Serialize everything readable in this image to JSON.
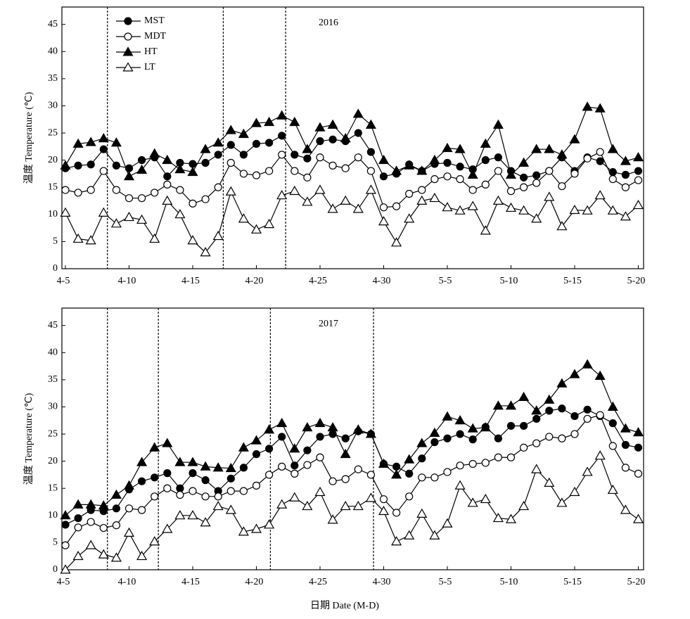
{
  "chart_data": [
    {
      "type": "line",
      "annotation": "2016",
      "ylabel": "温度 Temperature (℃)",
      "categories": [
        "4-5",
        null,
        null,
        null,
        null,
        "4-10",
        null,
        null,
        null,
        null,
        "4-15",
        null,
        null,
        null,
        null,
        "4-20",
        null,
        null,
        null,
        null,
        "4-25",
        null,
        null,
        null,
        null,
        "4-30",
        null,
        null,
        null,
        null,
        "5-5",
        null,
        null,
        null,
        null,
        "5-10",
        null,
        null,
        null,
        null,
        "5-15",
        null,
        null,
        null,
        null,
        "5-20"
      ],
      "ylim": [
        0,
        48.2
      ],
      "yticks": [
        0,
        5,
        10,
        15,
        20,
        25,
        30,
        35,
        40,
        45
      ],
      "legend": "upper left",
      "vlines": [
        3.3,
        12.4,
        17.3
      ],
      "series": [
        {
          "name": "MST",
          "color": "#000000",
          "marker": "circle-filled",
          "values": [
            18.5,
            19,
            19.2,
            22,
            19,
            18.5,
            20,
            20.5,
            17,
            19.5,
            19.3,
            19.5,
            21,
            22.8,
            21,
            23,
            23.2,
            24.5,
            21,
            20.3,
            23.5,
            23.8,
            23.5,
            25,
            21.5,
            17,
            17.5,
            19.2,
            18,
            19.3,
            19.5,
            18.8,
            18.3,
            20,
            20.5,
            18,
            16.8,
            17.2,
            18,
            20.5,
            18,
            20.5,
            19.8,
            17.8,
            17.3,
            18
          ]
        },
        {
          "name": "MDT",
          "color": "#000000",
          "marker": "circle-open",
          "values": [
            14.5,
            14,
            14.5,
            18,
            14.5,
            13,
            13,
            14,
            15.5,
            14.5,
            12,
            12.8,
            15,
            19.5,
            17.5,
            17.2,
            18,
            21,
            18,
            16.8,
            20.5,
            19,
            18.5,
            20.5,
            18,
            11.3,
            11.5,
            13.8,
            14.5,
            16.5,
            17,
            16.5,
            14.5,
            15.5,
            18,
            14.3,
            15,
            15.8,
            18,
            15.2,
            17.5,
            20.3,
            21.5,
            16.5,
            15,
            16.3
          ]
        },
        {
          "name": "HT",
          "color": "#000000",
          "marker": "triangle-filled",
          "values": [
            19,
            23,
            23.3,
            24,
            23.2,
            17,
            18.2,
            21.2,
            20,
            18.3,
            17.8,
            22,
            23.2,
            25.5,
            24.8,
            26.8,
            27,
            28.2,
            27,
            22,
            26,
            26.5,
            24,
            28.5,
            26.5,
            20,
            18,
            19,
            18,
            20,
            22.2,
            22,
            17.3,
            23,
            26.5,
            17.3,
            19.5,
            22,
            22,
            21,
            23.8,
            29.8,
            29.5,
            22,
            19.8,
            20.5
          ]
        },
        {
          "name": "LT",
          "color": "#000000",
          "marker": "triangle-open",
          "values": [
            10.3,
            5.5,
            5.2,
            10.3,
            8.3,
            9.5,
            9,
            5.5,
            12.5,
            10,
            5.2,
            3,
            6,
            14.2,
            9.2,
            7.2,
            8.2,
            13.5,
            14.3,
            12.3,
            14.5,
            11,
            12.5,
            11,
            14.5,
            8.7,
            4.8,
            9.2,
            12.5,
            13,
            11.3,
            10.7,
            11.5,
            7,
            12.5,
            11.2,
            10.7,
            9.2,
            13.2,
            7.8,
            10.8,
            10.7,
            13.5,
            10.7,
            9.6,
            11.7
          ]
        }
      ]
    },
    {
      "type": "line",
      "annotation": "2017",
      "ylabel": "温度 Temperature (℃)",
      "xlabel": "日期 Date (M-D)",
      "categories": [
        "4-5",
        null,
        null,
        null,
        null,
        "4-10",
        null,
        null,
        null,
        null,
        "4-15",
        null,
        null,
        null,
        null,
        "4-20",
        null,
        null,
        null,
        null,
        "4-25",
        null,
        null,
        null,
        null,
        "4-30",
        null,
        null,
        null,
        null,
        "5-5",
        null,
        null,
        null,
        null,
        "5-10",
        null,
        null,
        null,
        null,
        "5-15",
        null,
        null,
        null,
        null,
        "5-20"
      ],
      "ylim": [
        0,
        48.2
      ],
      "yticks": [
        0,
        5,
        10,
        15,
        20,
        25,
        30,
        35,
        40,
        45
      ],
      "vlines": [
        3.3,
        7.3,
        16.1,
        24.2
      ],
      "series": [
        {
          "color": "#000000",
          "marker": "circle-filled",
          "values": [
            8.3,
            9.5,
            11,
            10.8,
            11.3,
            14.8,
            16.3,
            17,
            17.8,
            15,
            17.8,
            16.5,
            14.5,
            16.8,
            18.8,
            21.3,
            22.3,
            24.5,
            19.2,
            22,
            24.5,
            25,
            24.2,
            25.5,
            25,
            19.5,
            19,
            17.7,
            20.5,
            23.5,
            24.2,
            25,
            24,
            26.3,
            24.2,
            26.5,
            26.5,
            27.8,
            29.3,
            29.7,
            28.3,
            29.5,
            28.3,
            27,
            23,
            22.5
          ]
        },
        {
          "color": "#000000",
          "marker": "circle-open",
          "values": [
            4.5,
            7.8,
            8.8,
            7.7,
            8.2,
            11.3,
            11,
            13.5,
            15,
            13.8,
            14.5,
            13.5,
            13.5,
            14.5,
            14.5,
            15.5,
            17.5,
            19,
            17.7,
            19.3,
            20.7,
            16.3,
            16.7,
            18.5,
            17.5,
            13,
            10.5,
            13.5,
            17,
            17,
            18,
            19.2,
            19.5,
            19.7,
            20.7,
            20.7,
            22.5,
            23.3,
            24.5,
            24.2,
            25,
            27.8,
            28.5,
            22.8,
            18.8,
            17.7
          ]
        },
        {
          "color": "#000000",
          "marker": "triangle-filled",
          "values": [
            10,
            12,
            12,
            11.8,
            13.8,
            15.5,
            19.8,
            22.5,
            23.3,
            19.8,
            19.8,
            19,
            18.8,
            18.7,
            22.5,
            23.8,
            25.8,
            27,
            22.3,
            26.2,
            27,
            26.2,
            21.3,
            25.8,
            25,
            19.5,
            17.5,
            20.3,
            23.3,
            25.2,
            28.2,
            27.5,
            26,
            26.2,
            30.2,
            30.2,
            31.8,
            29.3,
            31.3,
            34.3,
            36,
            37.8,
            35.7,
            30,
            26,
            25.3
          ]
        },
        {
          "color": "#000000",
          "marker": "triangle-open",
          "values": [
            0,
            2.5,
            4.5,
            2.8,
            2.2,
            6.8,
            2.5,
            5.2,
            7.5,
            10,
            10,
            8.7,
            11.7,
            11,
            7,
            7.5,
            8.3,
            12,
            13.3,
            11.7,
            14.3,
            9.2,
            11.7,
            11.7,
            13.2,
            10.8,
            5.2,
            6.3,
            10.3,
            6.3,
            8.5,
            15.5,
            12.3,
            13,
            9.5,
            9.3,
            11.7,
            18.5,
            16,
            12.3,
            14.3,
            18,
            21,
            14.7,
            11,
            9.3
          ]
        }
      ]
    }
  ]
}
